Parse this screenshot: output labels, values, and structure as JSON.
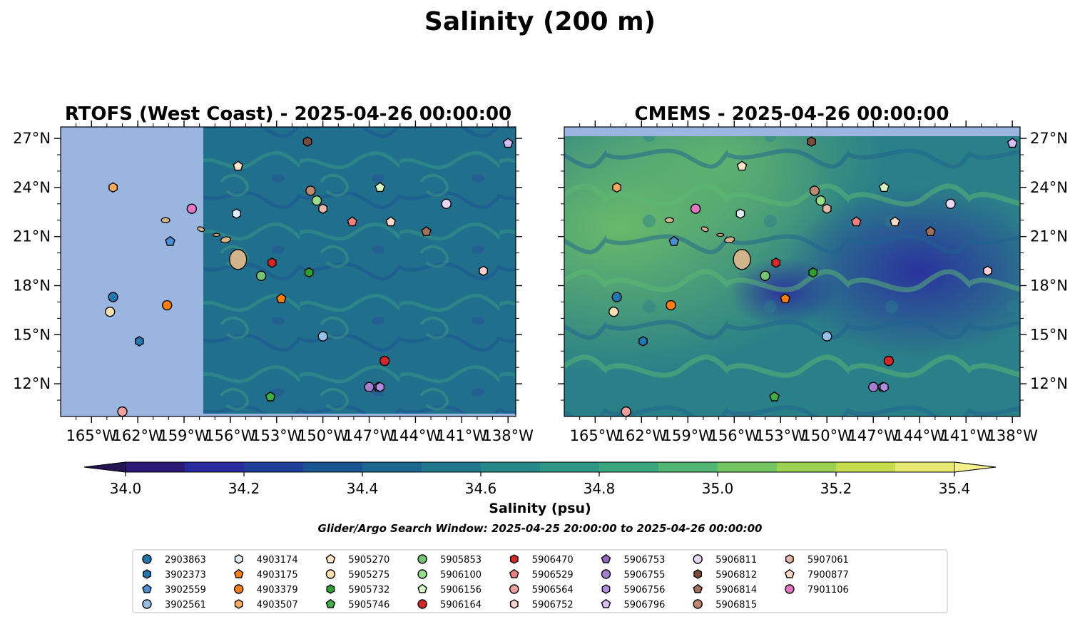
{
  "figure": {
    "title": "Salinity (200 m)",
    "search_window": "Glider/Argo Search Window: 2025-04-25 20:00:00 to 2025-04-26 00:00:00"
  },
  "colors": {
    "land": "#d2b48c",
    "missing": "#9ab5e0",
    "colormap": [
      "#2b1a73",
      "#2a2aa0",
      "#203f98",
      "#1a5592",
      "#1d678e",
      "#21778c",
      "#278789",
      "#2f9785",
      "#3aa67e",
      "#53b573",
      "#74c464",
      "#9ad250",
      "#c4dc4a",
      "#e6ea70"
    ]
  },
  "chart_data": [
    {
      "type": "heatmap",
      "title": "RTOFS (West Coast) - 2025-04-26 00:00:00",
      "xlim": [
        -167,
        -137.5
      ],
      "ylim": [
        10,
        27.7
      ],
      "xticks": [
        "165°W",
        "162°W",
        "159°W",
        "156°W",
        "153°W",
        "150°W",
        "147°W",
        "144°W",
        "141°W",
        "138°W"
      ],
      "yticks": [
        "27°N",
        "24°N",
        "21°N",
        "18°N",
        "15°N",
        "12°N"
      ],
      "ytick_side": "left",
      "data_lon_min": -157.7,
      "missing_band_lat": null
    },
    {
      "type": "heatmap",
      "title": "CMEMS - 2025-04-26 00:00:00",
      "xlim": [
        -167,
        -137.5
      ],
      "ylim": [
        10,
        27.7
      ],
      "xticks": [
        "165°W",
        "162°W",
        "159°W",
        "156°W",
        "153°W",
        "150°W",
        "147°W",
        "144°W",
        "141°W",
        "138°W"
      ],
      "yticks": [
        "27°N",
        "24°N",
        "21°N",
        "18°N",
        "15°N",
        "12°N"
      ],
      "ytick_side": "right",
      "data_lon_min": null,
      "missing_band_lat": 27.1
    },
    {
      "type": "scatter",
      "name": "Glider/Argo floats",
      "points": [
        {
          "id": "2903863",
          "lon": -163.6,
          "lat": 17.3,
          "marker": "circle",
          "color": "#1f77b4"
        },
        {
          "id": "3902373",
          "lon": -161.9,
          "lat": 14.6,
          "marker": "hexagon",
          "color": "#1f77b4"
        },
        {
          "id": "3902559",
          "lon": -159.9,
          "lat": 20.7,
          "marker": "pentagon",
          "color": "#4a90d9"
        },
        {
          "id": "3902561",
          "lon": -150.0,
          "lat": 14.9,
          "marker": "circle",
          "color": "#93c1e8"
        },
        {
          "id": "4903174",
          "lon": -155.6,
          "lat": 22.4,
          "marker": "hexagon",
          "color": "#deeefa"
        },
        {
          "id": "4903175",
          "lon": -152.7,
          "lat": 17.2,
          "marker": "pentagon",
          "color": "#ff7f0e"
        },
        {
          "id": "4903379",
          "lon": -160.1,
          "lat": 16.8,
          "marker": "circle",
          "color": "#ff7f0e"
        },
        {
          "id": "4903507",
          "lon": -163.6,
          "lat": 24.0,
          "marker": "hexagon",
          "color": "#ffa95c"
        },
        {
          "id": "5905270",
          "lon": -155.5,
          "lat": 25.3,
          "marker": "pentagon",
          "color": "#ffe4c4"
        },
        {
          "id": "5905275",
          "lon": -163.8,
          "lat": 16.4,
          "marker": "circle",
          "color": "#ffdfb0"
        },
        {
          "id": "5905732",
          "lon": -150.9,
          "lat": 18.8,
          "marker": "hexagon",
          "color": "#2ca02c"
        },
        {
          "id": "5905746",
          "lon": -153.4,
          "lat": 11.2,
          "marker": "pentagon",
          "color": "#3cb043"
        },
        {
          "id": "5905853",
          "lon": -154.0,
          "lat": 18.6,
          "marker": "circle",
          "color": "#74c476"
        },
        {
          "id": "5906100",
          "lon": -150.4,
          "lat": 23.2,
          "marker": "circle",
          "color": "#98df8a"
        },
        {
          "id": "5906156",
          "lon": -146.3,
          "lat": 24.0,
          "marker": "pentagon",
          "color": "#d4f7c4"
        },
        {
          "id": "5906164",
          "lon": -146.0,
          "lat": 13.4,
          "marker": "circle",
          "color": "#d62728"
        },
        {
          "id": "5906470",
          "lon": -153.3,
          "lat": 19.4,
          "marker": "hexagon",
          "color": "#d62728"
        },
        {
          "id": "5906529",
          "lon": -148.1,
          "lat": 21.9,
          "marker": "pentagon",
          "color": "#f08080"
        },
        {
          "id": "5906564",
          "lon": -163.0,
          "lat": 10.3,
          "marker": "circle",
          "color": "#f4a0a0"
        },
        {
          "id": "5906752",
          "lon": -139.6,
          "lat": 18.9,
          "marker": "hexagon",
          "color": "#ffd0d0"
        },
        {
          "id": "5906753",
          "lon": -146.4,
          "lat": 11.8,
          "marker": "pentagon",
          "color": "#9467bd"
        },
        {
          "id": "5906755",
          "lon": -147.0,
          "lat": 11.8,
          "marker": "circle",
          "color": "#a37fd0"
        },
        {
          "id": "5906756",
          "lon": -146.3,
          "lat": 11.8,
          "marker": "hexagon",
          "color": "#b08de0"
        },
        {
          "id": "5906796",
          "lon": -138.0,
          "lat": 26.7,
          "marker": "pentagon",
          "color": "#d6bdf5"
        },
        {
          "id": "5906811",
          "lon": -142.0,
          "lat": 23.0,
          "marker": "circle",
          "color": "#e8d8fb"
        },
        {
          "id": "5906812",
          "lon": -151.0,
          "lat": 26.8,
          "marker": "hexagon",
          "color": "#7a4b3a"
        },
        {
          "id": "5906814",
          "lon": -143.3,
          "lat": 21.3,
          "marker": "pentagon",
          "color": "#a0705a"
        },
        {
          "id": "5906815",
          "lon": -150.8,
          "lat": 23.8,
          "marker": "circle",
          "color": "#c08870"
        },
        {
          "id": "5907061",
          "lon": -150.0,
          "lat": 22.7,
          "marker": "hexagon",
          "color": "#e8b8a8"
        },
        {
          "id": "7900877",
          "lon": -145.6,
          "lat": 21.9,
          "marker": "pentagon",
          "color": "#ffd8c8"
        },
        {
          "id": "7901106",
          "lon": -158.5,
          "lat": 22.7,
          "marker": "circle",
          "color": "#e377c2"
        }
      ]
    },
    {
      "type": "colorbar",
      "label": "Salinity (psu)",
      "range": [
        34.0,
        35.4
      ],
      "step": 0.1,
      "ticks": [
        "34.0",
        "34.2",
        "34.4",
        "34.6",
        "34.8",
        "35.0",
        "35.2",
        "35.4"
      ],
      "extend": "both"
    }
  ]
}
